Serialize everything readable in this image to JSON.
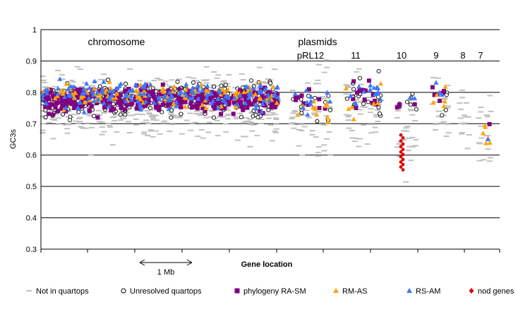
{
  "chart_data": {
    "type": "scatter",
    "xlabel": "Gene location",
    "ylabel": "GC3s",
    "ylim": [
      0.3,
      1
    ],
    "yticks": [
      "0.3",
      "0.4",
      "0.5",
      "0.6",
      "0.7",
      "0.8",
      "0.9",
      "1"
    ],
    "grid": "horizontal",
    "legend_position": "bottom",
    "annotations": {
      "chromosome": "chromosome",
      "plasmids": "plasmids",
      "scale_bar": "1 Mb"
    },
    "plasmid_labels": [
      "pRL12",
      "11",
      "10",
      "9",
      "8",
      "7"
    ],
    "colors": {
      "not_in_quartops": "#c0c0c0",
      "unresolved": "#000000",
      "phylogeny": "#800080",
      "rm_as": "#ffa500",
      "rs_am": "#3c78ff",
      "nod": "#e00000"
    },
    "regions": [
      {
        "name": "chromosome",
        "mean": 0.78,
        "sd": 0.055
      },
      {
        "name": "pRL12",
        "mean": 0.76,
        "sd": 0.065
      },
      {
        "name": "11",
        "mean": 0.77,
        "sd": 0.065
      },
      {
        "name": "10",
        "mean": 0.69,
        "sd": 0.07
      },
      {
        "name": "9",
        "mean": 0.76,
        "sd": 0.06
      },
      {
        "name": "8",
        "mean": 0.74,
        "sd": 0.05
      },
      {
        "name": "7",
        "mean": 0.68,
        "sd": 0.08
      }
    ],
    "nod_genes_gc3s": [
      0.664,
      0.655,
      0.645,
      0.635,
      0.627,
      0.618,
      0.61,
      0.602,
      0.595,
      0.586,
      0.578,
      0.57,
      0.562,
      0.553
    ],
    "series": [
      {
        "name": "Not in quartops"
      },
      {
        "name": "Unresolved quartops"
      },
      {
        "name": "phylogeny RA-SM"
      },
      {
        "name": "RM-AS"
      },
      {
        "name": "RS-AM"
      },
      {
        "name": "nod genes"
      }
    ]
  }
}
